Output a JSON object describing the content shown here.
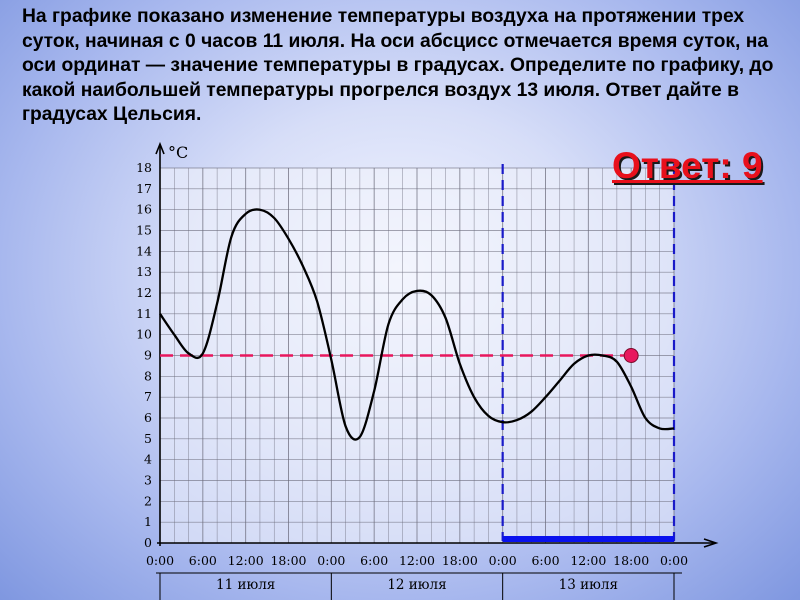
{
  "question": "На графике показано изменение температуры воздуха на протяжении трех суток, начиная с 0 часов 11 июля. На оси абсцисс отмечается время суток, на оси ординат — значение температуры в градусах. Определите по графику, до какой наибольшей температуры прогрелся воздух 13 июля. Ответ дайте в градусах Цельсия.",
  "answer_label": "Ответ: 9",
  "colors": {
    "curve": "#000000",
    "answer_line": "#e8175d",
    "day_lines": "#1a1ac8",
    "answer_text": "#e8101c"
  },
  "chart_data": {
    "type": "line",
    "ylabel": "°C",
    "ylim": [
      0,
      18
    ],
    "yticks": [
      "0",
      "1",
      "2",
      "3",
      "4",
      "5",
      "6",
      "7",
      "8",
      "9",
      "10",
      "11",
      "12",
      "13",
      "14",
      "15",
      "16",
      "17",
      "18"
    ],
    "xlim_hours": [
      0,
      72
    ],
    "xticks": [
      "0:00",
      "6:00",
      "12:00",
      "18:00",
      "0:00",
      "6:00",
      "12:00",
      "18:00",
      "0:00",
      "6:00",
      "12:00",
      "18:00",
      "0:00"
    ],
    "days": [
      "11 июля",
      "12 июля",
      "13 июля"
    ],
    "grid": true,
    "series": [
      {
        "x_hours": [
          0,
          2,
          4,
          6,
          8,
          10,
          12,
          14,
          16,
          18,
          20,
          22,
          24,
          26,
          28,
          30,
          32,
          34,
          36,
          38,
          40,
          42,
          44,
          46,
          48,
          50,
          52,
          54,
          56,
          58,
          60,
          62,
          64,
          66,
          68,
          70,
          72
        ],
        "values": [
          11,
          10,
          9.1,
          9.1,
          11.5,
          14.7,
          15.8,
          16,
          15.6,
          14.6,
          13.3,
          11.6,
          8.8,
          5.6,
          5.1,
          7.3,
          10.5,
          11.7,
          12.1,
          11.9,
          10.8,
          8.6,
          7,
          6.1,
          5.8,
          5.9,
          6.3,
          7,
          7.8,
          8.6,
          9,
          9,
          8.7,
          7.5,
          6,
          5.5,
          5.5
        ]
      }
    ],
    "annotations": {
      "answer_value": 9,
      "answer_time_hours": 66,
      "day_13_start_hours": 48,
      "day_13_end_hours": 72
    }
  }
}
